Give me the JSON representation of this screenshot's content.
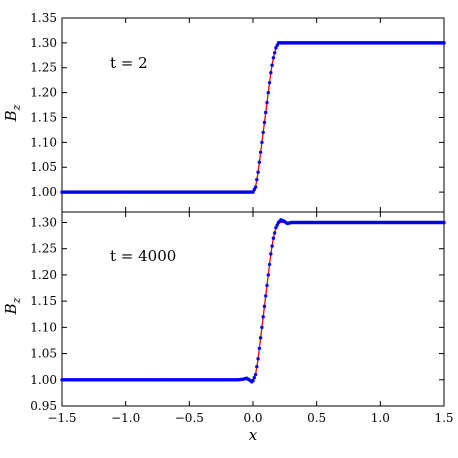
{
  "chart_data": [
    {
      "type": "line",
      "panel": "top",
      "annotation": "t = 2",
      "ylabel": "B_z",
      "xlabel": "",
      "xlim": [
        -1.5,
        1.5
      ],
      "ylim": [
        0.96,
        1.35
      ],
      "xticks": [
        "−1.5",
        "−1.0",
        "−0.5",
        "0.0",
        "0.5",
        "1.0",
        "1.5"
      ],
      "xticks_labeled": false,
      "yticks": [
        "1.00",
        "1.05",
        "1.10",
        "1.15",
        "1.20",
        "1.25",
        "1.30",
        "1.35"
      ],
      "grid": false,
      "series": [
        {
          "style": "solid-line",
          "color": "#ff0000",
          "x": [
            -1.5,
            0.0,
            0.02,
            0.04,
            0.06,
            0.08,
            0.1,
            0.12,
            0.14,
            0.16,
            0.18,
            0.2,
            1.5
          ],
          "y": [
            1.0,
            1.0,
            1.01,
            1.04,
            1.08,
            1.12,
            1.16,
            1.2,
            1.24,
            1.27,
            1.29,
            1.3,
            1.3
          ]
        },
        {
          "style": "markers",
          "color": "#0000ff",
          "x": [
            -1.5,
            0.0,
            0.02,
            0.04,
            0.06,
            0.08,
            0.1,
            0.12,
            0.14,
            0.16,
            0.18,
            0.2,
            1.5
          ],
          "y": [
            1.0,
            1.0,
            1.01,
            1.04,
            1.08,
            1.12,
            1.16,
            1.2,
            1.24,
            1.27,
            1.29,
            1.3,
            1.3
          ]
        }
      ]
    },
    {
      "type": "line",
      "panel": "bottom",
      "annotation": "t = 4000",
      "ylabel": "B_z",
      "xlabel": "x",
      "xlim": [
        -1.5,
        1.5
      ],
      "ylim": [
        0.95,
        1.32
      ],
      "xticks": [
        "−1.5",
        "−1.0",
        "−0.5",
        "0.0",
        "0.5",
        "1.0",
        "1.5"
      ],
      "xticks_labeled": true,
      "yticks": [
        "0.95",
        "1.00",
        "1.05",
        "1.10",
        "1.15",
        "1.20",
        "1.25",
        "1.30"
      ],
      "grid": false,
      "series": [
        {
          "style": "solid-line",
          "color": "#ff0000",
          "x": [
            -1.5,
            0.0,
            0.02,
            0.04,
            0.06,
            0.08,
            0.1,
            0.12,
            0.14,
            0.16,
            0.18,
            0.2,
            1.5
          ],
          "y": [
            1.0,
            1.0,
            1.01,
            1.04,
            1.08,
            1.12,
            1.16,
            1.2,
            1.24,
            1.27,
            1.29,
            1.3,
            1.3
          ]
        },
        {
          "style": "markers",
          "color": "#0000ff",
          "x": [
            -1.5,
            -0.3,
            -0.2,
            -0.12,
            -0.08,
            -0.05,
            -0.03,
            -0.01,
            0.0,
            0.02,
            0.04,
            0.06,
            0.08,
            0.1,
            0.12,
            0.14,
            0.16,
            0.18,
            0.2,
            0.22,
            0.24,
            0.27,
            0.3,
            0.35,
            0.5,
            1.5
          ],
          "y": [
            1.0,
            1.0,
            1.0,
            1.0,
            1.001,
            1.003,
            1.0,
            0.996,
            0.998,
            1.01,
            1.04,
            1.08,
            1.12,
            1.16,
            1.2,
            1.24,
            1.27,
            1.29,
            1.3,
            1.305,
            1.303,
            1.298,
            1.3,
            1.3,
            1.3,
            1.3
          ]
        }
      ]
    }
  ]
}
